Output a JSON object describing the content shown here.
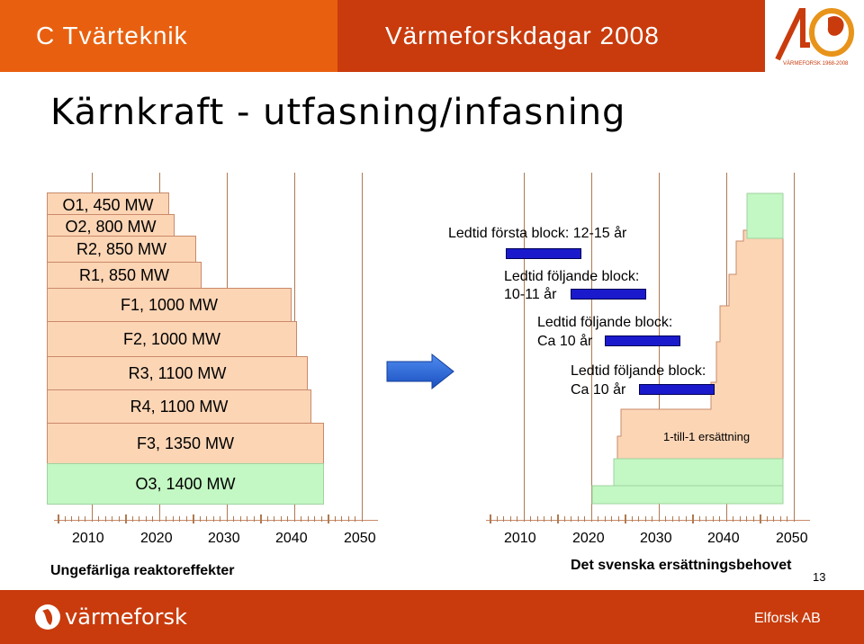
{
  "header": {
    "left_title": "C Tvärteknik",
    "center_title": "Värmeforskdagar 2008",
    "logo_number": "40",
    "logo_caption": "VÄRMEFORSK 1968-2008"
  },
  "slide_title": "Kärnkraft - utfasning/infasning",
  "left_diagram": {
    "reactors": [
      {
        "label": "O1, 450 MW"
      },
      {
        "label": "O2, 800 MW"
      },
      {
        "label": "R2, 850 MW"
      },
      {
        "label": "R1, 850 MW"
      },
      {
        "label": "F1, 1000 MW"
      },
      {
        "label": "F2, 1000 MW"
      },
      {
        "label": "R3, 1100 MW"
      },
      {
        "label": "R4, 1100 MW"
      },
      {
        "label": "F3, 1350 MW"
      },
      {
        "label": "O3, 1400 MW"
      }
    ],
    "years": [
      "2010",
      "2020",
      "2030",
      "2040",
      "2050"
    ],
    "caption": "Ungefärliga reaktoreffekter"
  },
  "right_diagram": {
    "notes": [
      {
        "text": "Ledtid första block: 12-15 år"
      },
      {
        "text": "Ledtid följande block:"
      },
      {
        "text": "10-11 år"
      },
      {
        "text": "Ledtid följande block:"
      },
      {
        "text": "Ca 10 år"
      },
      {
        "text": "Ledtid följande block:"
      },
      {
        "text": "Ca 10 år"
      },
      {
        "text": "1-till-1 ersättning"
      }
    ],
    "years": [
      "2010",
      "2020",
      "2030",
      "2040",
      "2050"
    ],
    "caption": "Det svenska ersättningsbehovet"
  },
  "page_number": "13",
  "footer": {
    "brand": "värmeforsk",
    "company": "Elforsk AB"
  },
  "colors": {
    "header_orange": "#e8600f",
    "header_red": "#c93b0d",
    "bar_fill": "#fcd5b5",
    "bar_green": "#c3f7c3",
    "leadtime_blue": "#1a1acc",
    "arrow_blue": "#1e5fd6"
  }
}
